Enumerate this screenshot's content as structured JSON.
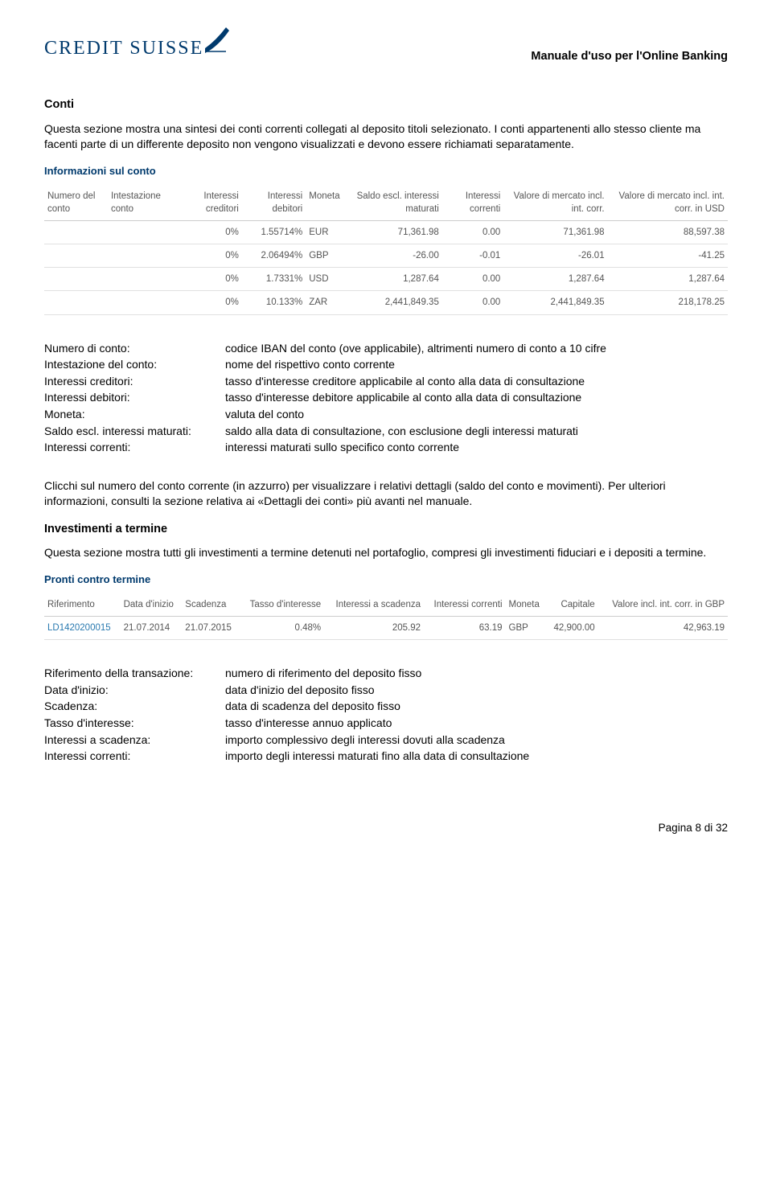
{
  "header": {
    "logo_text": "CREDIT SUISSE",
    "doc_title": "Manuale d'uso per l'Online Banking",
    "logo_color": "#003a6d"
  },
  "section1": {
    "title": "Conti",
    "para": "Questa sezione mostra una sintesi dei conti correnti collegati al deposito titoli selezionato. I conti appartenenti allo stesso cliente ma facenti parte di un differente deposito non vengono visualizzati e devono essere richiamati separatamente."
  },
  "table1": {
    "title": "Informazioni sul conto",
    "columns": [
      "Numero del conto",
      "Intestazione conto",
      "Interessi creditori",
      "Interessi debitori",
      "Moneta",
      "Saldo escl. interessi maturati",
      "Interessi correnti",
      "Valore di mercato incl. int. corr.",
      "Valore di mercato incl. int. corr. in USD"
    ],
    "rows": [
      [
        "",
        "",
        "0%",
        "1.55714%",
        "EUR",
        "71,361.98",
        "0.00",
        "71,361.98",
        "88,597.38"
      ],
      [
        "",
        "",
        "0%",
        "2.06494%",
        "GBP",
        "-26.00",
        "-0.01",
        "-26.01",
        "-41.25"
      ],
      [
        "",
        "",
        "0%",
        "1.7331%",
        "USD",
        "1,287.64",
        "0.00",
        "1,287.64",
        "1,287.64"
      ],
      [
        "",
        "",
        "0%",
        "10.133%",
        "ZAR",
        "2,441,849.35",
        "0.00",
        "2,441,849.35",
        "218,178.25"
      ]
    ]
  },
  "defs1": [
    {
      "term": "Numero di conto:",
      "desc": "codice IBAN del conto (ove applicabile), altrimenti numero di conto a 10 cifre"
    },
    {
      "term": "Intestazione del conto:",
      "desc": "nome del rispettivo conto corrente"
    },
    {
      "term": "Interessi creditori:",
      "desc": "tasso d'interesse creditore applicabile al conto alla data di consultazione"
    },
    {
      "term": "Interessi debitori:",
      "desc": "tasso d'interesse debitore applicabile al conto alla data di consultazione"
    },
    {
      "term": "Moneta:",
      "desc": "valuta del conto"
    },
    {
      "term": "Saldo escl. interessi maturati:",
      "desc": "saldo alla data di consultazione, con esclusione degli interessi maturati"
    },
    {
      "term": "Interessi correnti:",
      "desc": "interessi maturati sullo specifico conto corrente"
    }
  ],
  "para2": "Clicchi sul numero del conto corrente (in azzurro) per visualizzare i relativi dettagli (saldo del conto e movimenti). Per ulteriori informazioni, consulti la sezione relativa ai «Dettagli dei conti» più avanti nel manuale.",
  "section2": {
    "title": "Investimenti a termine",
    "para": "Questa sezione mostra tutti gli investimenti a termine detenuti nel portafoglio, compresi gli investimenti fiduciari e i depositi a termine."
  },
  "table2": {
    "title": "Pronti contro termine",
    "columns": [
      "Riferimento",
      "Data d'inizio",
      "Scadenza",
      "Tasso d'interesse",
      "Interessi a scadenza",
      "Interessi correnti",
      "Moneta",
      "Capitale",
      "Valore incl. int. corr. in GBP"
    ],
    "rows": [
      [
        "LD1420200015",
        "21.07.2014",
        "21.07.2015",
        "0.48%",
        "205.92",
        "63.19",
        "GBP",
        "42,900.00",
        "42,963.19"
      ]
    ]
  },
  "defs2": [
    {
      "term": "Riferimento della transazione:",
      "desc": "numero di riferimento del deposito fisso"
    },
    {
      "term": "Data d'inizio:",
      "desc": "data d'inizio del deposito fisso"
    },
    {
      "term": "Scadenza:",
      "desc": "data di scadenza del deposito fisso"
    },
    {
      "term": "Tasso d'interesse:",
      "desc": "tasso d'interesse annuo applicato"
    },
    {
      "term": "Interessi a scadenza:",
      "desc": "importo complessivo degli interessi dovuti alla scadenza"
    },
    {
      "term": "Interessi correnti:",
      "desc": "importo degli interessi maturati fino alla data di consultazione"
    }
  ],
  "footer": {
    "page": "Pagina 8 di 32"
  }
}
